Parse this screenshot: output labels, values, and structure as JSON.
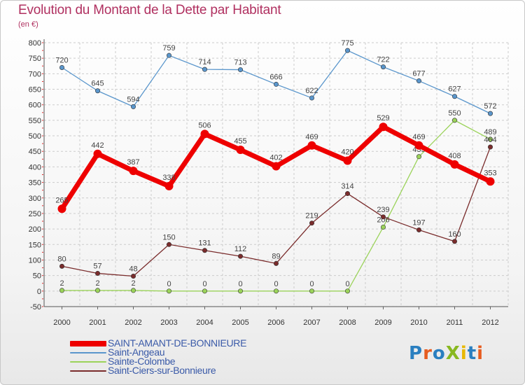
{
  "title": "Evolution du Montant de la Dette par Habitant",
  "subtitle": "(en €)",
  "logo": {
    "text": "ProXiti",
    "colors": [
      "#2a7fc0",
      "#e65c1f",
      "#2a7fc0",
      "#88b820",
      "#e8b800",
      "#2a7fc0",
      "#e65c1f"
    ]
  },
  "chart_data": {
    "type": "line",
    "title": "Evolution du Montant de la Dette par Habitant",
    "ylabel": "(en €)",
    "xlabel": "",
    "x": [
      "2000",
      "2001",
      "2002",
      "2003",
      "2004",
      "2005",
      "2006",
      "2007",
      "2008",
      "2009",
      "2010",
      "2011",
      "2012"
    ],
    "ylim": [
      -50,
      800
    ],
    "yticks": [
      -50,
      0,
      50,
      100,
      150,
      200,
      250,
      300,
      350,
      400,
      450,
      500,
      550,
      600,
      650,
      700,
      750,
      800
    ],
    "grid": true,
    "legend_position": "bottom-left",
    "series": [
      {
        "name": "SAINT-AMANT-DE-BONNIEURE",
        "color": "#ee0000",
        "values": [
          265,
          442,
          387,
          338,
          506,
          455,
          402,
          469,
          420,
          529,
          469,
          408,
          353
        ]
      },
      {
        "name": "Saint-Angeau",
        "color": "#5a96cc",
        "values": [
          720,
          645,
          594,
          759,
          714,
          713,
          666,
          622,
          775,
          722,
          677,
          627,
          572
        ]
      },
      {
        "name": "Sainte-Colombe",
        "color": "#9bd35a",
        "values": [
          2,
          2,
          2,
          0,
          0,
          0,
          0,
          0,
          0,
          206,
          433,
          550,
          489
        ]
      },
      {
        "name": "Saint-Ciers-sur-Bonnieure",
        "color": "#7a2c2c",
        "values": [
          80,
          57,
          48,
          150,
          131,
          112,
          89,
          219,
          314,
          239,
          197,
          160,
          464
        ]
      }
    ]
  }
}
